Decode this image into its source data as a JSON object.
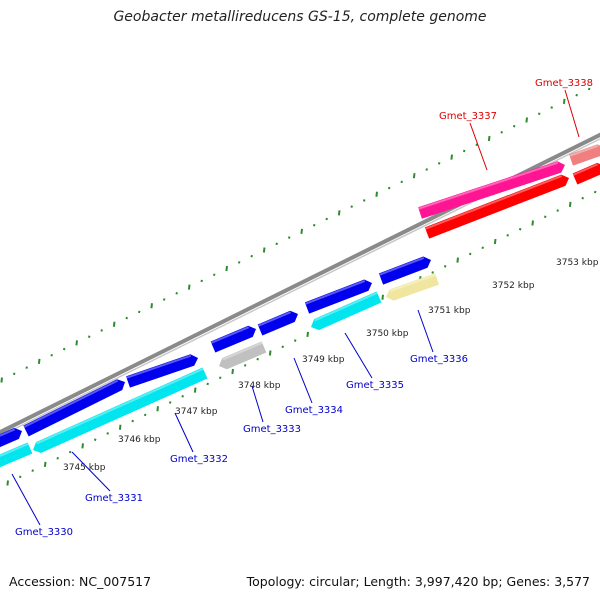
{
  "title": "Geobacter metallireducens GS-15, complete genome",
  "footer": {
    "accession": "Accession: NC_007517",
    "topology": "Topology: circular; Length: 3,997,420 bp; Genes: 3,577"
  },
  "colors": {
    "backbone": "#808080",
    "forward_cds": "#0000ee",
    "reverse_cds": "#00e5ee",
    "pseudo_gray": "#c0c0c0",
    "pseudo_yellow": "#f0e6a0",
    "rna_magenta": "#ff1493",
    "rna_red": "#ff0000",
    "rna_pink": "#f08080",
    "ticks": "#2e8b2e",
    "label_blue": "#0000cc",
    "label_red": "#dd0000"
  },
  "ruler": [
    {
      "kbp": 3745,
      "label": "3745 kbp"
    },
    {
      "kbp": 3746,
      "label": "3746 kbp"
    },
    {
      "kbp": 3747,
      "label": "3747 kbp"
    },
    {
      "kbp": 3748,
      "label": "3748 kbp"
    },
    {
      "kbp": 3749,
      "label": "3749 kbp"
    },
    {
      "kbp": 3750,
      "label": "3750 kbp"
    },
    {
      "kbp": 3751,
      "label": "3751 kbp"
    },
    {
      "kbp": 3752,
      "label": "3752 kbp"
    },
    {
      "kbp": 3753,
      "label": "3753 kbp"
    }
  ],
  "genes": [
    {
      "name": "Gmet_3330",
      "color": "label_blue"
    },
    {
      "name": "Gmet_3331",
      "color": "label_blue"
    },
    {
      "name": "Gmet_3332",
      "color": "label_blue"
    },
    {
      "name": "Gmet_3333",
      "color": "label_blue"
    },
    {
      "name": "Gmet_3334",
      "color": "label_blue"
    },
    {
      "name": "Gmet_3335",
      "color": "label_blue"
    },
    {
      "name": "Gmet_3336",
      "color": "label_blue"
    },
    {
      "name": "Gmet_3337",
      "color": "label_red"
    },
    {
      "name": "Gmet_3338",
      "color": "label_red"
    }
  ]
}
